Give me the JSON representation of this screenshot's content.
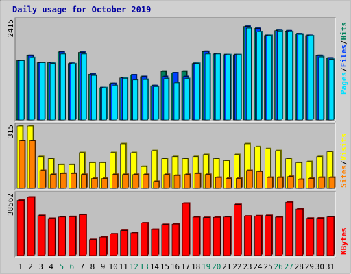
{
  "title": "Daily usage for October 2019",
  "colors": {
    "hits": "#00805c",
    "files": "#0040ff",
    "pages": "#00e0ff",
    "visits": "#ffff00",
    "sites": "#ff8000",
    "kbytes": "#ff0000",
    "title": "#0000a0",
    "weekend": "#00805c",
    "panel": "#c0c0c0",
    "frame": "#d0d0d0"
  },
  "chart_data": [
    {
      "type": "bar",
      "title": "Daily usage for October 2019",
      "categories": [
        "1",
        "2",
        "3",
        "4",
        "5",
        "6",
        "7",
        "8",
        "9",
        "10",
        "11",
        "12",
        "13",
        "14",
        "15",
        "16",
        "17",
        "18",
        "19",
        "20",
        "21",
        "22",
        "23",
        "24",
        "25",
        "26",
        "27",
        "28",
        "29",
        "30",
        "31"
      ],
      "weekend_days": [
        "5",
        "6",
        "12",
        "13",
        "19",
        "20",
        "26",
        "27"
      ],
      "ylim": [
        0,
        2415
      ],
      "max_label": "2415",
      "legend": [
        "Pages",
        "/",
        "Files",
        "/",
        "Hits"
      ],
      "series": [
        {
          "name": "Hits",
          "values": [
            1440,
            1560,
            1390,
            1390,
            1650,
            1370,
            1640,
            1110,
            780,
            880,
            1020,
            1090,
            1050,
            830,
            1180,
            1140,
            1180,
            1370,
            1660,
            1600,
            1580,
            1580,
            2270,
            2220,
            2050,
            2170,
            2160,
            2090,
            2050,
            1560,
            1500
          ]
        },
        {
          "name": "Files",
          "values": [
            1440,
            1560,
            1390,
            1390,
            1650,
            1370,
            1640,
            1110,
            780,
            880,
            1020,
            1090,
            1050,
            830,
            1050,
            1140,
            1050,
            1370,
            1660,
            1600,
            1580,
            1580,
            2270,
            2220,
            2050,
            2170,
            2160,
            2090,
            2050,
            1560,
            1500
          ]
        },
        {
          "name": "Pages",
          "values": [
            1440,
            1510,
            1390,
            1370,
            1600,
            1360,
            1600,
            1080,
            780,
            830,
            1010,
            970,
            980,
            810,
            1000,
            900,
            1000,
            1370,
            1600,
            1600,
            1580,
            1580,
            2230,
            2140,
            2050,
            2160,
            2140,
            2080,
            2040,
            1530,
            1470
          ]
        }
      ]
    },
    {
      "type": "bar",
      "categories": [
        "1",
        "2",
        "3",
        "4",
        "5",
        "6",
        "7",
        "8",
        "9",
        "10",
        "11",
        "12",
        "13",
        "14",
        "15",
        "16",
        "17",
        "18",
        "19",
        "20",
        "21",
        "22",
        "23",
        "24",
        "25",
        "26",
        "27",
        "28",
        "29",
        "30",
        "31"
      ],
      "ylim": [
        0,
        315
      ],
      "max_label": "315",
      "legend": [
        "Sites",
        "/",
        "Visits"
      ],
      "series": [
        {
          "name": "Visits",
          "values": [
            315,
            315,
            160,
            150,
            120,
            120,
            180,
            130,
            130,
            180,
            225,
            180,
            110,
            190,
            150,
            160,
            150,
            160,
            170,
            150,
            140,
            170,
            225,
            210,
            200,
            190,
            150,
            130,
            135,
            160,
            185
          ]
        },
        {
          "name": "Sites",
          "values": [
            240,
            240,
            90,
            70,
            75,
            75,
            70,
            50,
            50,
            70,
            70,
            70,
            70,
            35,
            70,
            65,
            70,
            75,
            70,
            55,
            50,
            50,
            90,
            85,
            55,
            55,
            60,
            45,
            50,
            55,
            55
          ]
        }
      ]
    },
    {
      "type": "bar",
      "categories": [
        "1",
        "2",
        "3",
        "4",
        "5",
        "6",
        "7",
        "8",
        "9",
        "10",
        "11",
        "12",
        "13",
        "14",
        "15",
        "16",
        "17",
        "18",
        "19",
        "20",
        "21",
        "22",
        "23",
        "24",
        "25",
        "26",
        "27",
        "28",
        "29",
        "30",
        "31"
      ],
      "ylim": [
        0,
        38562
      ],
      "max_label": "38562",
      "legend": [
        "KBytes"
      ],
      "series": [
        {
          "name": "KBytes",
          "values": [
            36500,
            38562,
            26400,
            24500,
            25500,
            25700,
            27000,
            10500,
            12200,
            14200,
            16500,
            15000,
            21500,
            17200,
            20500,
            20800,
            34500,
            25400,
            25100,
            25300,
            25500,
            33700,
            26000,
            26200,
            26400,
            25400,
            35300,
            30800,
            24600,
            24700,
            25600
          ]
        }
      ]
    }
  ]
}
